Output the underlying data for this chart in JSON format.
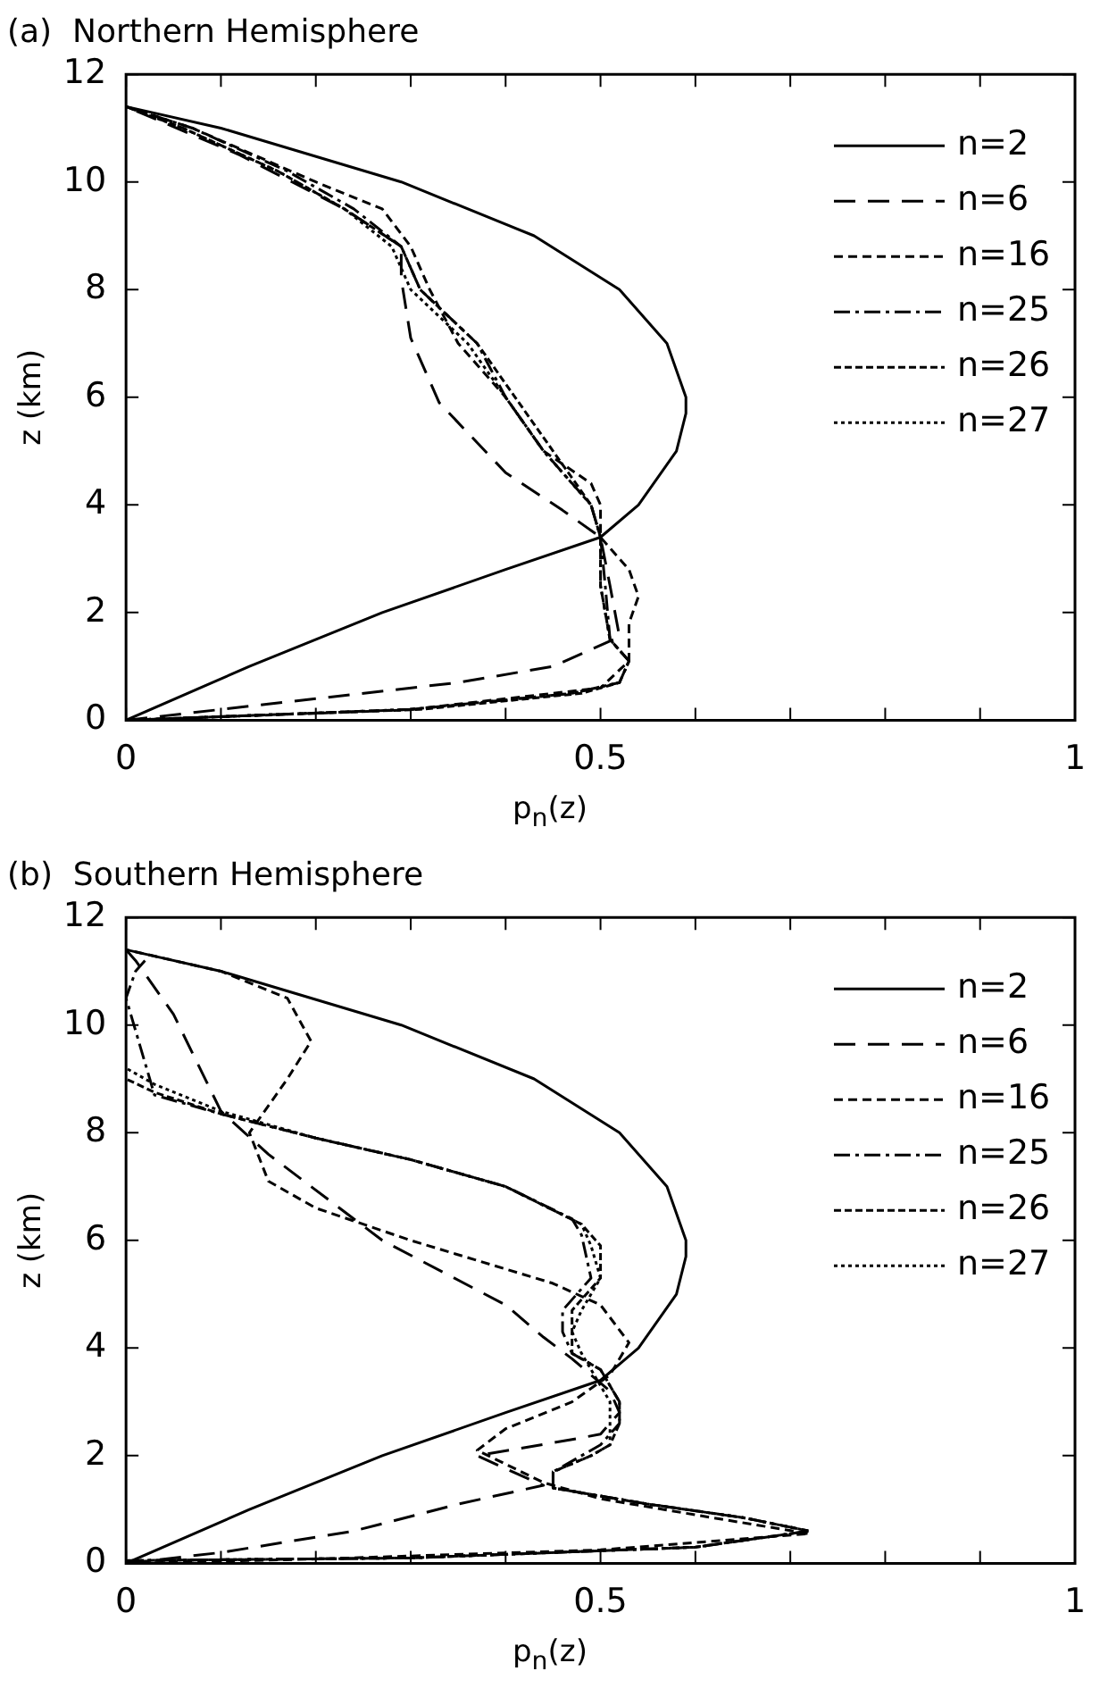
{
  "chart_data": [
    {
      "type": "line",
      "title": "(a)  Northern Hemisphere",
      "xlabel": "p$_{n}$(z)",
      "ylabel": "z (km)",
      "xlim": [
        0,
        1
      ],
      "xticks": [
        0,
        {
          "value": 0.1,
          "label": null
        },
        {
          "value": 0.2,
          "label": null
        },
        {
          "value": 0.3,
          "label": null
        },
        {
          "value": 0.4,
          "label": null
        },
        0.5,
        {
          "value": 0.6,
          "label": null
        },
        {
          "value": 0.7,
          "label": null
        },
        {
          "value": 0.8,
          "label": null
        },
        {
          "value": 0.9,
          "label": null
        },
        1
      ],
      "ylim": [
        0,
        12
      ],
      "yticks": [
        0,
        2,
        4,
        6,
        8,
        10,
        12
      ],
      "grid": false,
      "legend": "top right",
      "marker": "none",
      "series": [
        {
          "name": "n=2",
          "color": "#000000",
          "line_style": "solid",
          "x": [
            0,
            0.13,
            0.27,
            0.4,
            0.5,
            0.54,
            0.58,
            0.59,
            0.59,
            0.57,
            0.52,
            0.43,
            0.29,
            0.1,
            0
          ],
          "values": [
            0,
            1,
            2,
            2.8,
            3.4,
            4,
            5,
            5.7,
            6,
            7,
            8,
            9,
            10,
            11,
            11.4
          ]
        },
        {
          "name": "n=6",
          "color": "#000000",
          "line_style": "dashed",
          "x": [
            0,
            0.15,
            0.35,
            0.45,
            0.52,
            0.51,
            0.5,
            0.46,
            0.4,
            0.33,
            0.3,
            0.29,
            0.29,
            0.23,
            0.12,
            0
          ],
          "values": [
            0,
            0.3,
            0.7,
            1,
            1.55,
            2.5,
            3.4,
            3.9,
            4.6,
            5.9,
            7.1,
            8.2,
            8.8,
            9.5,
            10.5,
            11.4
          ]
        },
        {
          "name": "n=16",
          "color": "#000000",
          "line_style": "dashed",
          "x": [
            0,
            0.3,
            0.5,
            0.53,
            0.53,
            0.54,
            0.53,
            0.5,
            0.5,
            0.49,
            0.44,
            0.4,
            0.35,
            0.32,
            0.3,
            0.27,
            0.2,
            0.07,
            0
          ],
          "values": [
            0,
            0.2,
            0.6,
            1.1,
            1.8,
            2.3,
            2.8,
            3.4,
            4,
            4.4,
            5,
            6,
            7,
            8,
            8.8,
            9.5,
            10,
            11,
            11.4
          ]
        },
        {
          "name": "n=25",
          "color": "#000000",
          "line_style": "dashed",
          "x": [
            0,
            0.3,
            0.47,
            0.52,
            0.53,
            0.51,
            0.505,
            0.5,
            0.49,
            0.44,
            0.4,
            0.37,
            0.31,
            0.29,
            0.24,
            0.17,
            0.07,
            0
          ],
          "values": [
            0,
            0.2,
            0.5,
            0.7,
            1.1,
            1.5,
            2.5,
            3.4,
            4,
            5,
            6,
            7,
            8,
            8.8,
            9.5,
            10.2,
            11,
            11.4
          ]
        },
        {
          "name": "n=26",
          "color": "#000000",
          "line_style": "dashed",
          "x": [
            0,
            0.31,
            0.48,
            0.52,
            0.53,
            0.51,
            0.5,
            0.5,
            0.49,
            0.45,
            0.41,
            0.37,
            0.31,
            0.29,
            0.23,
            0.16,
            0.06,
            0
          ],
          "values": [
            0,
            0.2,
            0.5,
            0.7,
            1.1,
            1.5,
            2.5,
            3.4,
            4,
            5,
            6,
            7,
            8,
            8.8,
            9.5,
            10.2,
            11,
            11.4
          ]
        },
        {
          "name": "n=27",
          "color": "#000000",
          "line_style": "dotted",
          "x": [
            0,
            0.3,
            0.47,
            0.52,
            0.53,
            0.51,
            0.5,
            0.5,
            0.49,
            0.44,
            0.4,
            0.36,
            0.3,
            0.28,
            0.23,
            0.16,
            0.06,
            0
          ],
          "values": [
            0,
            0.2,
            0.5,
            0.7,
            1.1,
            1.5,
            2.5,
            3.4,
            4,
            5,
            6,
            7,
            8,
            8.8,
            9.5,
            10.2,
            11,
            11.4
          ]
        }
      ]
    },
    {
      "type": "line",
      "title": "(b)  Southern Hemisphere",
      "xlabel": "p$_{n}$(z)",
      "ylabel": "z (km)",
      "xlim": [
        0,
        1
      ],
      "xticks": [
        0,
        {
          "value": 0.1,
          "label": null
        },
        {
          "value": 0.2,
          "label": null
        },
        {
          "value": 0.3,
          "label": null
        },
        {
          "value": 0.4,
          "label": null
        },
        0.5,
        {
          "value": 0.6,
          "label": null
        },
        {
          "value": 0.7,
          "label": null
        },
        {
          "value": 0.8,
          "label": null
        },
        {
          "value": 0.9,
          "label": null
        },
        1
      ],
      "ylim": [
        0,
        12
      ],
      "yticks": [
        0,
        2,
        4,
        6,
        8,
        10,
        12
      ],
      "grid": false,
      "legend": "top right",
      "marker": "none",
      "series": [
        {
          "name": "n=2",
          "color": "#000000",
          "line_style": "solid",
          "x": [
            0,
            0.13,
            0.27,
            0.4,
            0.5,
            0.54,
            0.58,
            0.59,
            0.59,
            0.57,
            0.52,
            0.43,
            0.29,
            0.1,
            0
          ],
          "values": [
            0,
            1,
            2,
            2.8,
            3.4,
            4,
            5,
            5.7,
            6,
            7,
            8,
            9,
            10,
            11,
            11.4
          ]
        },
        {
          "name": "n=6",
          "color": "#000000",
          "line_style": "dashed",
          "x": [
            0,
            0.1,
            0.24,
            0.35,
            0.44,
            0.42,
            0.37,
            0.47,
            0.5,
            0.52,
            0.51,
            0.47,
            0.44,
            0.4,
            0.27,
            0.15,
            0.1,
            0.05,
            0.01,
            0
          ],
          "values": [
            0,
            0.2,
            0.6,
            1.1,
            1.45,
            1.6,
            2,
            2.3,
            2.4,
            2.8,
            3.2,
            3.8,
            4.2,
            4.8,
            6,
            7.6,
            8.4,
            10.2,
            11.2,
            11.4
          ]
        },
        {
          "name": "n=16",
          "color": "#000000",
          "line_style": "dashed",
          "x": [
            0,
            0.2,
            0.5,
            0.72,
            0.6,
            0.5,
            0.44,
            0.37,
            0.4,
            0.47,
            0.51,
            0.53,
            0.5,
            0.45,
            0.3,
            0.2,
            0.15,
            0.13,
            0.15,
            0.17,
            0.195,
            0.17,
            0.1,
            0
          ],
          "values": [
            0,
            0.08,
            0.25,
            0.55,
            0.9,
            1.2,
            1.5,
            2.1,
            2.5,
            3,
            3.5,
            4.1,
            4.8,
            5.2,
            6,
            6.6,
            7.1,
            8,
            8.5,
            9,
            9.7,
            10.5,
            11,
            11.4
          ]
        },
        {
          "name": "n=25",
          "color": "#000000",
          "line_style": "dashed",
          "x": [
            0,
            0.3,
            0.6,
            0.72,
            0.65,
            0.55,
            0.45,
            0.45,
            0.48,
            0.5,
            0.52,
            0.52,
            0.5,
            0.47,
            0.46,
            0.46,
            0.49,
            0.48,
            0.47,
            0.4,
            0.3,
            0.2,
            0.1,
            0.03,
            0,
            0.01,
            0.02
          ],
          "values": [
            0.05,
            0.1,
            0.3,
            0.6,
            0.85,
            1.1,
            1.4,
            1.7,
            2,
            2.2,
            2.6,
            3,
            3.6,
            3.9,
            4.3,
            4.7,
            5.3,
            6.1,
            6.4,
            7,
            7.5,
            7.9,
            8.35,
            8.7,
            10.5,
            11,
            11.2
          ]
        },
        {
          "name": "n=26",
          "color": "#000000",
          "line_style": "dashed",
          "x": [
            0,
            0.3,
            0.6,
            0.72,
            0.65,
            0.55,
            0.45,
            0.45,
            0.49,
            0.51,
            0.52,
            0.52,
            0.5,
            0.47,
            0.47,
            0.47,
            0.5,
            0.5,
            0.48,
            0.4,
            0.3,
            0.2,
            0.1,
            0.03,
            0
          ],
          "values": [
            0.05,
            0.1,
            0.3,
            0.6,
            0.85,
            1.1,
            1.4,
            1.7,
            2,
            2.2,
            2.6,
            3,
            3.6,
            3.9,
            4.3,
            4.7,
            5.3,
            5.9,
            6.3,
            7,
            7.5,
            7.9,
            8.35,
            8.75,
            9
          ]
        },
        {
          "name": "n=27",
          "color": "#000000",
          "line_style": "dotted",
          "x": [
            0,
            0.3,
            0.6,
            0.72,
            0.65,
            0.55,
            0.45,
            0.45,
            0.49,
            0.51,
            0.51,
            0.51,
            0.49,
            0.48,
            0.47,
            0.48,
            0.5,
            0.49,
            0.48,
            0.4,
            0.3,
            0.2,
            0.1,
            0.03,
            0
          ],
          "values": [
            0.05,
            0.1,
            0.3,
            0.6,
            0.85,
            1.1,
            1.4,
            1.7,
            2,
            2.2,
            2.6,
            3,
            3.6,
            3.9,
            4.3,
            4.7,
            5.3,
            5.9,
            6.3,
            7,
            7.5,
            7.9,
            8.4,
            8.9,
            9.2
          ]
        }
      ]
    }
  ]
}
